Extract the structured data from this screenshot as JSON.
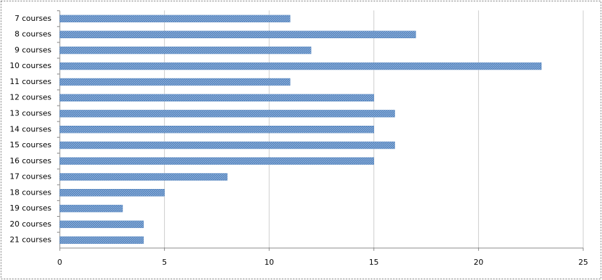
{
  "chart_data": {
    "type": "bar",
    "orientation": "horizontal",
    "categories": [
      "7 courses",
      "8 courses",
      "9 courses",
      "10 courses",
      "11 courses",
      "12 courses",
      "13 courses",
      "14 courses",
      "15 courses",
      "16 courses",
      "17 courses",
      "18 courses",
      "19 courses",
      "20 courses",
      "21 courses"
    ],
    "values": [
      11,
      17,
      12,
      23,
      11,
      15,
      16,
      15,
      16,
      15,
      8,
      5,
      3,
      4,
      4
    ],
    "color": "#4f81bd",
    "xlim": [
      0,
      25
    ],
    "xticks": [
      0,
      5,
      10,
      15,
      20,
      25
    ],
    "grid": true
  }
}
